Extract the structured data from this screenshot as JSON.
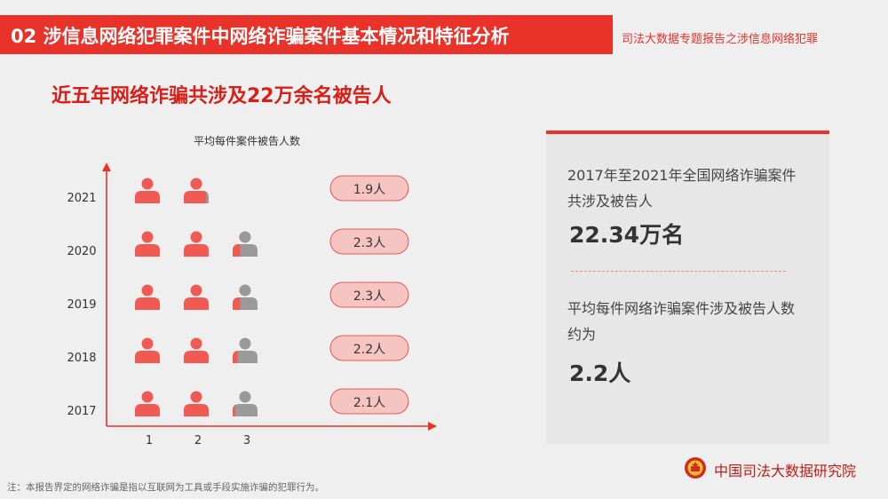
{
  "header": {
    "banner_title": "02  涉信息网络犯罪案件中网络诈骗案件基本情况和特征分析",
    "report_subtitle": "司法大数据专题报告之涉信息网络犯罪"
  },
  "headline": "近五年网络诈骗共涉及22万余名被告人",
  "chart_data": {
    "type": "pictograph",
    "title": "平均每件案件被告人数",
    "categories": [
      "2021",
      "2020",
      "2019",
      "2018",
      "2017"
    ],
    "values": [
      1.9,
      2.3,
      2.3,
      2.2,
      2.1
    ],
    "value_labels": [
      "1.9人",
      "2.3人",
      "2.3人",
      "2.2人",
      "2.1人"
    ],
    "x_ticks": [
      "1",
      "2",
      "3"
    ],
    "icon_max": 3,
    "colors": {
      "filled": "#f05a53",
      "empty": "#9a9a9a",
      "pill_fill": "#f6c4c1",
      "pill_stroke": "#e8322a",
      "axis": "#e8322a"
    }
  },
  "panel": {
    "text1": "2017年至2021年全国网络诈骗案件共涉及被告人",
    "value1": "22.34万名",
    "text2": "平均每件网络诈骗案件涉及被告人数约为",
    "value2": "2.2人"
  },
  "footnote": "注：本报告界定的网络诈骗是指以互联网为工具或手段实施诈骗的犯罪行为。",
  "org": {
    "name": "中国司法大数据研究院",
    "emblem": "court-emblem-icon"
  }
}
